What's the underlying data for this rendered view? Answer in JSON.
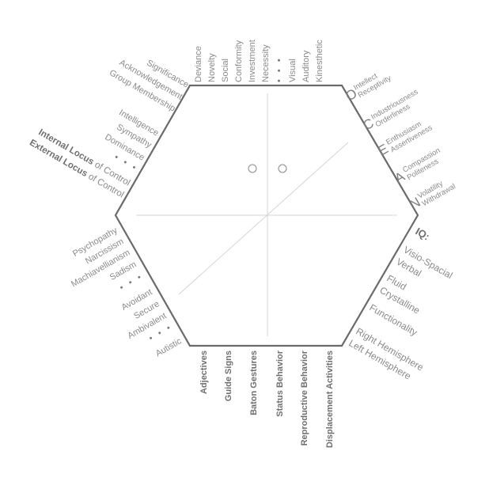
{
  "top": {
    "items": [
      "Deviance",
      "Novelty",
      "Social",
      "Conformity",
      "Investment",
      "Necessity",
      "•  •  •",
      "Visual",
      "Auditory",
      "Kinesthetic"
    ]
  },
  "upper_left": {
    "group1": [
      "Significance",
      "Acknowledgement",
      "Group Membership"
    ],
    "group2": [
      "Intelligence",
      "Sympathy",
      "Dominance"
    ],
    "dots": "•  •  •",
    "locus": {
      "internal_bold": "Internal Locus",
      "internal_rest": " of Control",
      "external_bold": "External Locus",
      "external_rest": " of Control"
    }
  },
  "lower_left": {
    "group1": [
      "Psychopathy",
      "Narcissism",
      "Machiavellianism",
      "Sadism"
    ],
    "dots1": "•  •  •",
    "group2": [
      "Avoidant",
      "Secure",
      "Ambivalent"
    ],
    "dots2": "•  •  •",
    "group3": "Autistic"
  },
  "bottom": {
    "items": [
      "Adjectives",
      "Guide Signs",
      "Baton Gestures",
      "Status Behavior",
      "Reproductive Behavior",
      "Displacement Activities"
    ]
  },
  "ocean": [
    {
      "letter": "O",
      "lines": [
        "Intellect",
        "Receptivity"
      ]
    },
    {
      "letter": "C",
      "lines": [
        "Industriousness",
        "Orderliness"
      ]
    },
    {
      "letter": "E",
      "lines": [
        "Enthusiasm",
        "Assertiveness"
      ]
    },
    {
      "letter": "A",
      "lines": [
        "Compassion",
        "Politeness"
      ]
    },
    {
      "letter": "N",
      "lines": [
        "Volatility",
        "Withdrawal"
      ]
    }
  ],
  "lower_right": {
    "header": "IQ:",
    "group1": [
      "Visio-Spacial",
      "Verbal"
    ],
    "group2": [
      "Fluid",
      "Crystalline"
    ],
    "group3": "Functionality",
    "group4": [
      "Right Hemisphere",
      "Left Hemisphere"
    ]
  },
  "colors": {
    "hexagon": "#6a6a6a",
    "axes": "#d4d4d4",
    "text": "#8a8a8a"
  }
}
